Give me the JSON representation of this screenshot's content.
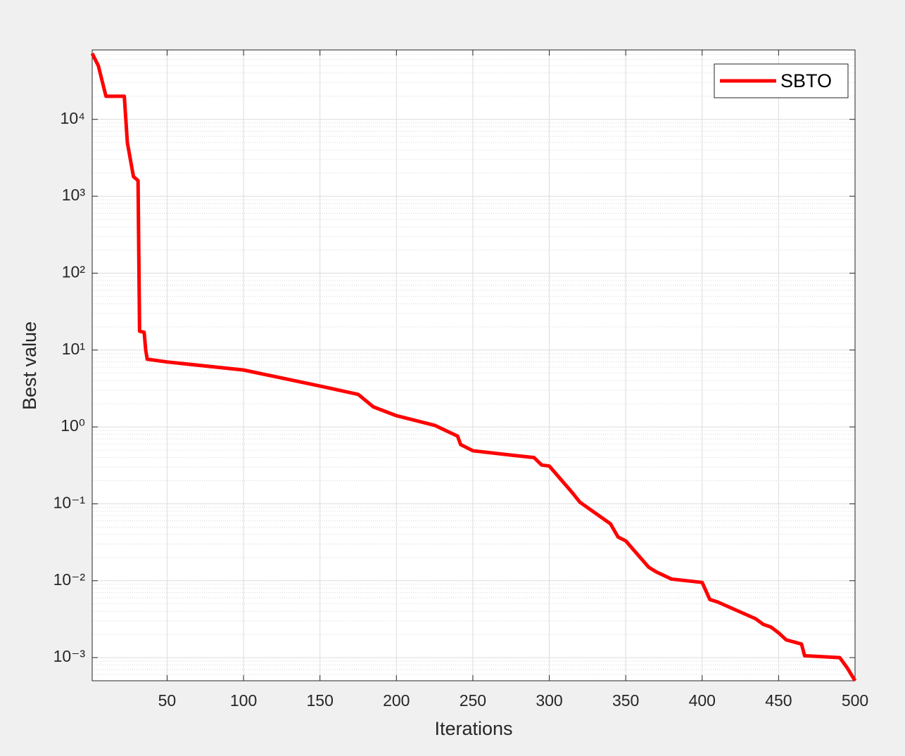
{
  "chart_data": {
    "type": "line",
    "xlabel": "Iterations",
    "ylabel": "Best value",
    "x": [
      1,
      5,
      10,
      22,
      23,
      24,
      28,
      31,
      32,
      35,
      36,
      37,
      50,
      100,
      150,
      175,
      185,
      200,
      225,
      240,
      242,
      250,
      275,
      290,
      295,
      300,
      315,
      320,
      340,
      345,
      350,
      365,
      370,
      380,
      400,
      405,
      410,
      435,
      440,
      445,
      450,
      455,
      465,
      467,
      490,
      495,
      500
    ],
    "series": [
      {
        "name": "SBTO",
        "color": "#ff0000",
        "values": [
          72000,
          50000,
          20000,
          20000,
          10000,
          5000,
          1800,
          1600,
          17.6,
          17,
          10,
          7.6,
          7,
          5.5,
          3.4,
          2.65,
          1.82,
          1.4,
          1.05,
          0.76,
          0.59,
          0.49,
          0.43,
          0.4,
          0.32,
          0.31,
          0.14,
          0.105,
          0.055,
          0.037,
          0.033,
          0.015,
          0.013,
          0.0105,
          0.0095,
          0.0057,
          0.0053,
          0.0032,
          0.0027,
          0.0025,
          0.0021,
          0.0017,
          0.0015,
          0.00106,
          0.001,
          0.00073,
          0.0005
        ]
      }
    ],
    "xlim": [
      1,
      500
    ],
    "xticks": [
      50,
      100,
      150,
      200,
      250,
      300,
      350,
      400,
      450,
      500
    ],
    "ylim": [
      0.0005,
      80000
    ],
    "ylog": true,
    "yticks": [
      {
        "value": 0.001,
        "label": "10⁻³"
      },
      {
        "value": 0.01,
        "label": "10⁻²"
      },
      {
        "value": 0.1,
        "label": "10⁻¹"
      },
      {
        "value": 1,
        "label": "10⁰"
      },
      {
        "value": 10,
        "label": "10¹"
      },
      {
        "value": 100,
        "label": "10²"
      },
      {
        "value": 1000,
        "label": "10³"
      },
      {
        "value": 10000,
        "label": "10⁴"
      }
    ],
    "grid": true,
    "minor_grid": true,
    "legend": "upper right"
  }
}
